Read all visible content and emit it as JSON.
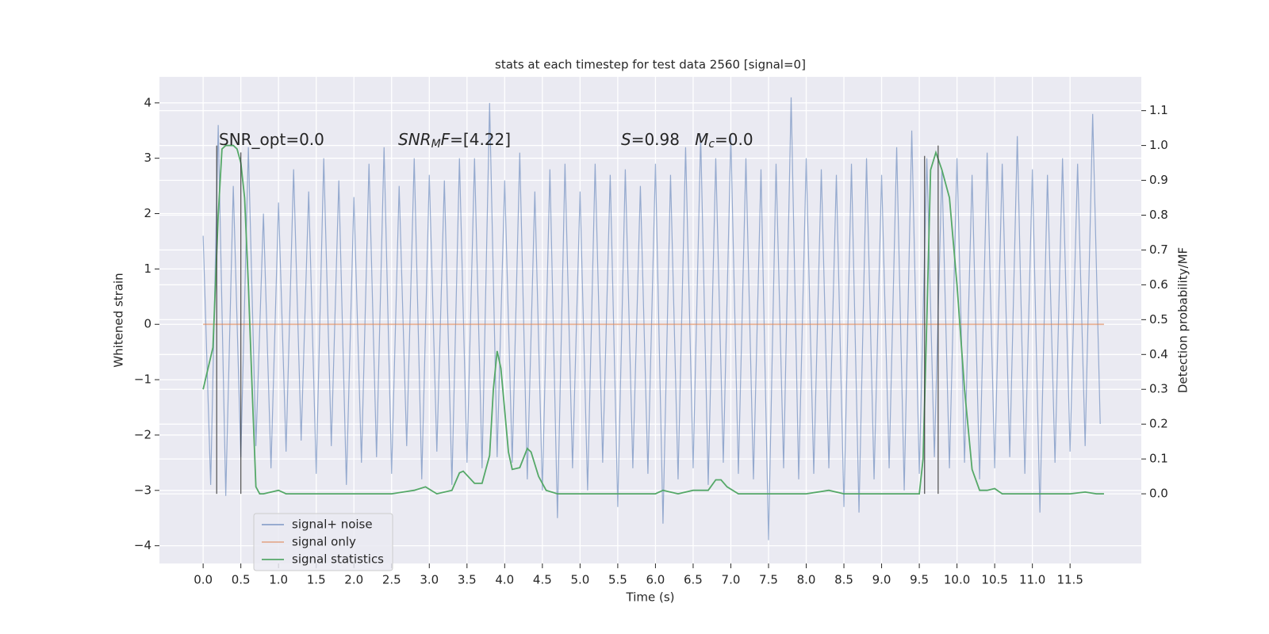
{
  "chart_data": {
    "type": "line",
    "title": "stats at each timestep for test data 2560 [signal=0]",
    "x_label": "Time (s)",
    "y_label": "Whitened strain",
    "y2_label": "Detection probability/MF",
    "xlim": [
      -0.58,
      12.445
    ],
    "ylim": [
      -4.32,
      4.47
    ],
    "y2lim": [
      -0.2,
      1.197
    ],
    "grid": true,
    "legend_position": "lower left",
    "xticks": [
      {
        "value": 0,
        "label": "0.0"
      },
      0.5,
      {
        "value": 1,
        "label": "1.0"
      },
      1.5,
      {
        "value": 2,
        "label": "2.0"
      },
      2.5,
      {
        "value": 3,
        "label": "3.0"
      },
      3.5,
      {
        "value": 4,
        "label": "4.0"
      },
      4.5,
      {
        "value": 5,
        "label": "5.0"
      },
      5.5,
      {
        "value": 6,
        "label": "6.0"
      },
      6.5,
      {
        "value": 7,
        "label": "7.0"
      },
      7.5,
      {
        "value": 8,
        "label": "8.0"
      },
      8.5,
      {
        "value": 9,
        "label": "9.0"
      },
      9.5,
      {
        "value": 10,
        "label": "10.0"
      },
      10.5,
      {
        "value": 11,
        "label": "11.0"
      },
      11.5
    ],
    "yticks": [
      {
        "value": -4,
        "label": "−4"
      },
      {
        "value": -3,
        "label": "−3"
      },
      {
        "value": -2,
        "label": "−2"
      },
      {
        "value": -1,
        "label": "−1"
      },
      0,
      1,
      2,
      3,
      4
    ],
    "y2ticks": [
      {
        "value": 0,
        "label": "0.0"
      },
      0.1,
      0.2,
      0.3,
      0.4,
      0.5,
      0.6,
      0.7,
      0.8,
      0.9,
      {
        "value": 1,
        "label": "1.0"
      },
      1.1
    ],
    "series": [
      {
        "name": "signal+ noise",
        "color": "#4c72b0",
        "axis": "y",
        "x": [
          0,
          0.1,
          0.2,
          0.3,
          0.4,
          0.5,
          0.6,
          0.7,
          0.8,
          0.9,
          1,
          1.1,
          1.2,
          1.3,
          1.4,
          1.5,
          1.6,
          1.7,
          1.8,
          1.9,
          2,
          2.1,
          2.2,
          2.3,
          2.4,
          2.5,
          2.6,
          2.7,
          2.8,
          2.9,
          3,
          3.1,
          3.2,
          3.3,
          3.4,
          3.5,
          3.6,
          3.7,
          3.8,
          3.9,
          4,
          4.1,
          4.2,
          4.3,
          4.4,
          4.5,
          4.6,
          4.7,
          4.8,
          4.9,
          5,
          5.1,
          5.2,
          5.3,
          5.4,
          5.5,
          5.6,
          5.7,
          5.8,
          5.9,
          6,
          6.1,
          6.2,
          6.3,
          6.4,
          6.5,
          6.6,
          6.7,
          6.8,
          6.9,
          7,
          7.1,
          7.2,
          7.3,
          7.4,
          7.5,
          7.6,
          7.7,
          7.8,
          7.9,
          8,
          8.1,
          8.2,
          8.3,
          8.4,
          8.5,
          8.6,
          8.7,
          8.8,
          8.9,
          9,
          9.1,
          9.2,
          9.3,
          9.4,
          9.5,
          9.6,
          9.7,
          9.8,
          9.9,
          10,
          10.1,
          10.2,
          10.3,
          10.4,
          10.5,
          10.6,
          10.7,
          10.8,
          10.9,
          11,
          11.1,
          11.2,
          11.3,
          11.4,
          11.5,
          11.6,
          11.7,
          11.8,
          11.9
        ],
        "values": [
          1.6,
          -2.9,
          3.6,
          -3.1,
          2.5,
          -2.4,
          3.2,
          -2.2,
          2.0,
          -2.6,
          2.2,
          -2.3,
          2.8,
          -2.1,
          2.4,
          -2.7,
          3.0,
          -2.2,
          2.6,
          -2.9,
          2.3,
          -2.5,
          2.9,
          -2.4,
          3.2,
          -2.7,
          2.5,
          -2.2,
          3.0,
          -2.8,
          2.7,
          -2.3,
          2.6,
          -2.9,
          3.0,
          -2.5,
          3.0,
          -2.6,
          4.0,
          -2.4,
          2.6,
          -2.5,
          3.1,
          -2.8,
          2.4,
          -3.0,
          2.8,
          -3.5,
          2.9,
          -2.6,
          2.4,
          -3.0,
          2.9,
          -2.5,
          2.7,
          -3.3,
          2.8,
          -2.6,
          2.5,
          -2.7,
          2.9,
          -3.6,
          2.7,
          -2.8,
          3.2,
          -2.6,
          3.4,
          -2.9,
          3.0,
          -2.5,
          3.4,
          -2.7,
          3.0,
          -2.8,
          2.8,
          -3.9,
          2.9,
          -2.6,
          4.1,
          -2.8,
          3.0,
          -2.7,
          2.8,
          -2.6,
          2.7,
          -3.3,
          2.9,
          -3.4,
          3.0,
          -2.8,
          2.7,
          -2.6,
          3.2,
          -3.0,
          3.5,
          -2.7,
          3.0,
          -2.4,
          2.8,
          -2.6,
          3.0,
          -2.5,
          2.7,
          -2.8,
          3.1,
          -2.6,
          2.9,
          -2.4,
          3.4,
          -2.7,
          2.8,
          -3.4,
          2.7,
          -2.5,
          3.0,
          -2.3,
          2.9,
          -2.2,
          3.8,
          -1.8
        ]
      },
      {
        "name": "signal only",
        "color": "#dd8452",
        "axis": "y",
        "x": [
          0,
          11.95
        ],
        "values": [
          0,
          0
        ]
      },
      {
        "name": "signal statistics",
        "color": "#55a868",
        "axis": "y2",
        "x": [
          0,
          0.13,
          0.2,
          0.25,
          0.3,
          0.4,
          0.45,
          0.5,
          0.55,
          0.6,
          0.65,
          0.7,
          0.75,
          0.8,
          1.0,
          1.1,
          2.5,
          2.8,
          2.95,
          3.1,
          3.3,
          3.4,
          3.45,
          3.6,
          3.7,
          3.8,
          3.85,
          3.9,
          3.95,
          4.05,
          4.1,
          4.2,
          4.3,
          4.35,
          4.45,
          4.55,
          4.7,
          6.0,
          6.1,
          6.3,
          6.5,
          6.7,
          6.8,
          6.87,
          6.95,
          7.1,
          8.0,
          8.3,
          8.5,
          9.0,
          9.5,
          9.55,
          9.6,
          9.65,
          9.72,
          9.8,
          9.9,
          10.0,
          10.1,
          10.2,
          10.3,
          10.4,
          10.5,
          10.6,
          11.5,
          11.7,
          11.85,
          11.95
        ],
        "values": [
          0.3,
          0.42,
          0.8,
          0.99,
          1.0,
          1.0,
          0.99,
          0.95,
          0.85,
          0.6,
          0.3,
          0.02,
          0.0,
          0.0,
          0.01,
          0.0,
          0.0,
          0.01,
          0.02,
          0.0,
          0.01,
          0.06,
          0.065,
          0.03,
          0.03,
          0.11,
          0.3,
          0.41,
          0.36,
          0.12,
          0.07,
          0.075,
          0.13,
          0.12,
          0.05,
          0.01,
          0.0,
          0.0,
          0.01,
          0.0,
          0.01,
          0.01,
          0.04,
          0.04,
          0.02,
          0.0,
          0.0,
          0.01,
          0.0,
          0.0,
          0.0,
          0.1,
          0.5,
          0.93,
          0.98,
          0.93,
          0.85,
          0.6,
          0.3,
          0.07,
          0.01,
          0.01,
          0.015,
          0.0,
          0.0,
          0.005,
          0.0,
          0.0
        ]
      }
    ],
    "vlines": {
      "color": "#333333",
      "x": [
        0.18,
        0.5,
        9.57,
        9.75
      ],
      "y2_bottom": [
        0,
        0,
        0,
        0
      ],
      "y2_top": [
        1.0,
        0.98,
        0.97,
        1.0
      ]
    },
    "annotations": [
      [
        {
          "text": "SNR_opt=0.0",
          "style": "normal"
        }
      ],
      [
        {
          "text": "SNR",
          "style": "italic"
        },
        {
          "text": "M",
          "style": "italic-sub"
        },
        {
          "text": "F",
          "style": "italic"
        },
        {
          "text": "=[4.22]",
          "style": "normal"
        }
      ],
      [
        {
          "text": "S",
          "style": "italic"
        },
        {
          "text": "=0.98   ",
          "style": "normal"
        },
        {
          "text": "M",
          "style": "italic"
        },
        {
          "text": "c",
          "style": "italic-sub"
        },
        {
          "text": "=0.0",
          "style": "normal"
        }
      ]
    ]
  }
}
